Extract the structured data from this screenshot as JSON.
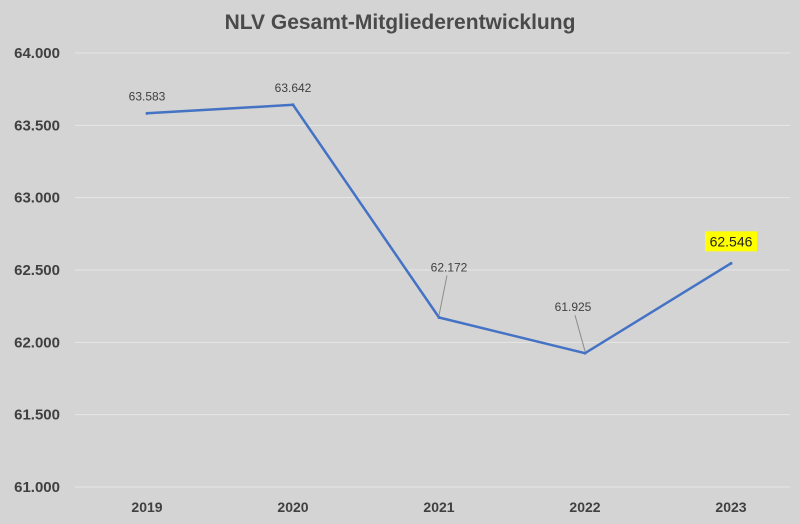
{
  "chart_data": {
    "type": "line",
    "title": "NLV Gesamt-Mitgliederentwicklung",
    "xlabel": "",
    "ylabel": "",
    "categories": [
      "2019",
      "2020",
      "2021",
      "2022",
      "2023"
    ],
    "series": [
      {
        "values": [
          63583,
          63642,
          62172,
          61925,
          62546
        ],
        "labels": [
          "63.583",
          "63.642",
          "62.172",
          "61.925",
          "62.546"
        ],
        "color": "#4472c4"
      }
    ],
    "ylim": [
      61000,
      64000
    ],
    "yticks": [
      61000,
      61500,
      62000,
      62500,
      63000,
      63500,
      64000
    ],
    "ytick_labels": [
      "61.000",
      "61.500",
      "62.000",
      "62.500",
      "63.000",
      "63.500",
      "64.000"
    ],
    "grid": true,
    "legend": "none",
    "highlight": {
      "index": 4,
      "color": "#ffff00"
    }
  },
  "colors": {
    "background": "#d4d4d4",
    "gridline": "#e6e6e6",
    "text": "#404040"
  }
}
